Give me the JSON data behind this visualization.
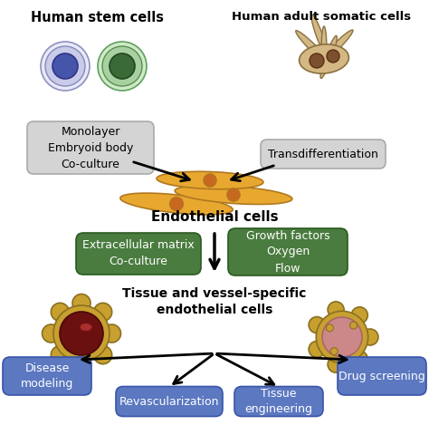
{
  "stem_cells_label": "Human stem cells",
  "somatic_cells_label": "Human adult somatic cells",
  "endothelial_label": "Endothelial cells",
  "tissue_label": "Tissue and vessel-specific\nendothelial cells",
  "box1_text": "Monolayer\nEmbryoid body\nCo-culture",
  "box2_text": "Transdifferentiation",
  "box3_text": "Extracellular matrix\nCo-culture",
  "box4_text": "Growth factors\nOxygen\nFlow",
  "blue_box1": "Disease\nmodeling",
  "blue_box2": "Revascularization",
  "blue_box3": "Tissue\nengineering",
  "blue_box4": "Drug screening",
  "gray_box_color": "#d4d4d4",
  "gray_box_edge": "#aaaaaa",
  "green_box_color": "#4a7c3f",
  "green_box_text_color": "#ffffff",
  "blue_box_color": "#5b78c0",
  "blue_box_text_color": "#ffffff",
  "stem_cell1_outer": "#c8cce8",
  "stem_cell1_mid": "#e8eaf8",
  "stem_cell1_inner": "#4455aa",
  "stem_cell2_outer": "#a8d0a0",
  "stem_cell2_mid": "#d0eac8",
  "stem_cell2_inner": "#3a6a35",
  "ec_cell_color": "#e8a830",
  "ec_cell_outline": "#b07820",
  "ec_nucleus_color": "#c86820",
  "somatic_cell_color": "#d4b884",
  "somatic_cell_outline": "#8a7040",
  "somatic_nucleus_color": "#7a5030",
  "vessel_left_outer": "#c8a030",
  "vessel_left_outer_edge": "#8a7020",
  "vessel_left_inner": "#6a1010",
  "vessel_right_outer": "#c8a030",
  "vessel_right_outer_edge": "#8a7020",
  "vessel_right_inner": "#cc8888",
  "vessel_right_inner_edge": "#aa6666",
  "vessel_lobe_color": "#c4a028",
  "bg_color": "#ffffff"
}
